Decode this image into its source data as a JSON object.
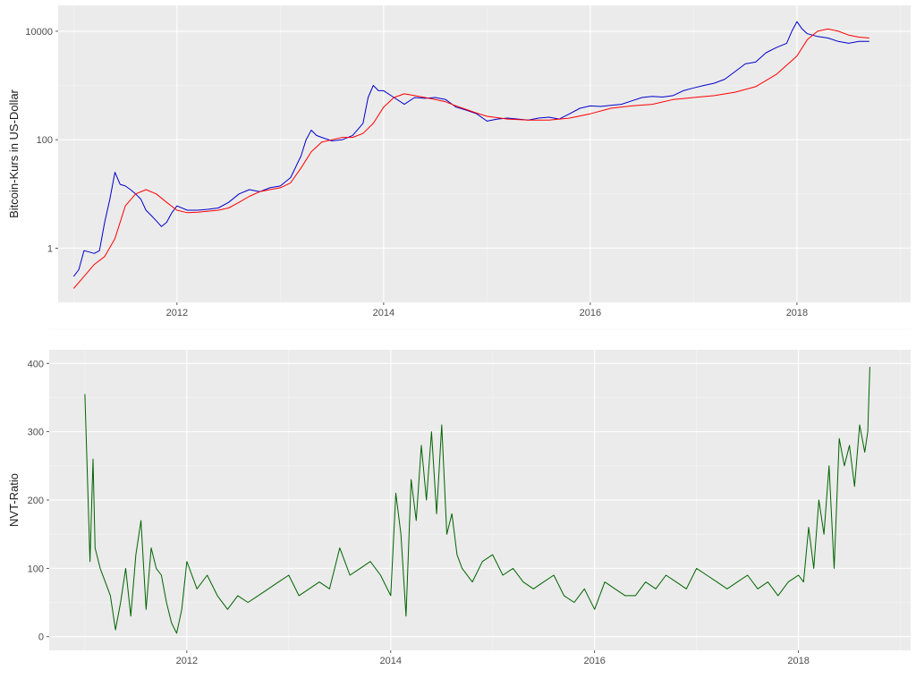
{
  "chart_data": [
    {
      "type": "line",
      "ylabel": "Bitcoin-Kurs in US-Dollar",
      "xlabel": "",
      "title": "",
      "y_scale": "log10",
      "xlim": [
        2010.85,
        2019.1
      ],
      "ylim": [
        0.1,
        30000
      ],
      "x_ticks": [
        2012,
        2014,
        2016,
        2018
      ],
      "x_tick_labels": [
        "2012",
        "2014",
        "2016",
        "2018"
      ],
      "y_ticks": [
        1,
        100,
        10000
      ],
      "y_tick_labels": [
        "1",
        "100",
        "10000"
      ],
      "grid": true,
      "series": [
        {
          "color": "#0000cd",
          "x": [
            2011.0,
            2011.05,
            2011.1,
            2011.15,
            2011.2,
            2011.25,
            2011.3,
            2011.35,
            2011.4,
            2011.45,
            2011.5,
            2011.55,
            2011.6,
            2011.65,
            2011.7,
            2011.75,
            2011.8,
            2011.85,
            2011.9,
            2011.95,
            2012.0,
            2012.1,
            2012.2,
            2012.3,
            2012.4,
            2012.5,
            2012.6,
            2012.7,
            2012.8,
            2012.9,
            2013.0,
            2013.1,
            2013.2,
            2013.25,
            2013.3,
            2013.35,
            2013.4,
            2013.5,
            2013.6,
            2013.7,
            2013.8,
            2013.85,
            2013.9,
            2013.95,
            2014.0,
            2014.1,
            2014.2,
            2014.3,
            2014.4,
            2014.5,
            2014.6,
            2014.7,
            2014.8,
            2014.9,
            2015.0,
            2015.1,
            2015.2,
            2015.3,
            2015.4,
            2015.5,
            2015.6,
            2015.7,
            2015.8,
            2015.9,
            2016.0,
            2016.1,
            2016.2,
            2016.3,
            2016.4,
            2016.5,
            2016.6,
            2016.7,
            2016.8,
            2016.9,
            2017.0,
            2017.1,
            2017.2,
            2017.3,
            2017.4,
            2017.5,
            2017.6,
            2017.7,
            2017.8,
            2017.9,
            2017.95,
            2018.0,
            2018.05,
            2018.1,
            2018.2,
            2018.3,
            2018.4,
            2018.5,
            2018.6,
            2018.7
          ],
          "values": [
            0.3,
            0.4,
            0.9,
            0.85,
            0.8,
            0.9,
            3,
            8,
            25,
            15,
            14,
            12,
            10,
            8,
            5,
            4,
            3.2,
            2.5,
            3,
            4.5,
            6,
            5,
            5,
            5.2,
            5.5,
            7,
            10,
            12,
            11,
            13,
            14,
            20,
            50,
            100,
            150,
            120,
            110,
            95,
            100,
            120,
            200,
            600,
            1000,
            800,
            800,
            600,
            450,
            600,
            580,
            600,
            550,
            400,
            350,
            300,
            220,
            240,
            250,
            240,
            230,
            250,
            260,
            240,
            300,
            380,
            420,
            410,
            430,
            450,
            520,
            600,
            630,
            610,
            650,
            800,
            900,
            1000,
            1100,
            1300,
            1800,
            2500,
            2700,
            4000,
            5000,
            6000,
            10000,
            15000,
            11000,
            9000,
            8000,
            7500,
            6500,
            6000,
            6500,
            6500
          ]
        },
        {
          "color": "#ff0000",
          "x": [
            2011.0,
            2011.1,
            2011.2,
            2011.3,
            2011.4,
            2011.5,
            2011.6,
            2011.7,
            2011.8,
            2011.9,
            2012.0,
            2012.1,
            2012.2,
            2012.3,
            2012.4,
            2012.5,
            2012.6,
            2012.7,
            2012.8,
            2012.9,
            2013.0,
            2013.1,
            2013.2,
            2013.3,
            2013.4,
            2013.5,
            2013.6,
            2013.7,
            2013.8,
            2013.9,
            2014.0,
            2014.1,
            2014.2,
            2014.3,
            2014.4,
            2014.5,
            2014.6,
            2014.7,
            2014.8,
            2014.9,
            2015.0,
            2015.2,
            2015.4,
            2015.6,
            2015.8,
            2016.0,
            2016.2,
            2016.4,
            2016.6,
            2016.8,
            2017.0,
            2017.2,
            2017.4,
            2017.6,
            2017.8,
            2018.0,
            2018.1,
            2018.2,
            2018.3,
            2018.4,
            2018.5,
            2018.6,
            2018.7
          ],
          "values": [
            0.18,
            0.3,
            0.5,
            0.7,
            1.5,
            6,
            10,
            12,
            10,
            7,
            5,
            4.5,
            4.6,
            4.8,
            5,
            5.5,
            7,
            9,
            11,
            12,
            13,
            16,
            30,
            60,
            90,
            100,
            110,
            110,
            130,
            200,
            400,
            600,
            700,
            650,
            600,
            550,
            500,
            420,
            360,
            310,
            270,
            240,
            230,
            230,
            250,
            300,
            380,
            420,
            450,
            550,
            600,
            650,
            750,
            950,
            1600,
            3500,
            7000,
            10000,
            11000,
            10000,
            8500,
            7800,
            7500
          ]
        }
      ]
    },
    {
      "type": "line",
      "ylabel": "NVT-Ratio",
      "xlabel": "",
      "title": "",
      "xlim": [
        2010.65,
        2019.1
      ],
      "ylim": [
        -20,
        420
      ],
      "x_ticks": [
        2012,
        2014,
        2016,
        2018
      ],
      "x_tick_labels": [
        "2012",
        "2014",
        "2016",
        "2018"
      ],
      "y_ticks": [
        0,
        100,
        200,
        300,
        400
      ],
      "y_tick_labels": [
        "0",
        "100",
        "200",
        "300",
        "400"
      ],
      "grid": true,
      "series": [
        {
          "color": "#006400",
          "x": [
            2011.0,
            2011.05,
            2011.08,
            2011.1,
            2011.15,
            2011.2,
            2011.25,
            2011.3,
            2011.35,
            2011.4,
            2011.45,
            2011.5,
            2011.55,
            2011.6,
            2011.65,
            2011.7,
            2011.75,
            2011.8,
            2011.85,
            2011.9,
            2011.95,
            2012.0,
            2012.1,
            2012.2,
            2012.3,
            2012.4,
            2012.5,
            2012.6,
            2012.7,
            2012.8,
            2012.9,
            2013.0,
            2013.1,
            2013.2,
            2013.3,
            2013.4,
            2013.5,
            2013.6,
            2013.7,
            2013.8,
            2013.9,
            2014.0,
            2014.05,
            2014.1,
            2014.15,
            2014.2,
            2014.25,
            2014.3,
            2014.35,
            2014.4,
            2014.45,
            2014.5,
            2014.55,
            2014.6,
            2014.65,
            2014.7,
            2014.8,
            2014.9,
            2015.0,
            2015.1,
            2015.2,
            2015.3,
            2015.4,
            2015.5,
            2015.6,
            2015.7,
            2015.8,
            2015.9,
            2016.0,
            2016.1,
            2016.2,
            2016.3,
            2016.4,
            2016.5,
            2016.6,
            2016.7,
            2016.8,
            2016.9,
            2017.0,
            2017.1,
            2017.2,
            2017.3,
            2017.4,
            2017.5,
            2017.6,
            2017.7,
            2017.8,
            2017.9,
            2018.0,
            2018.05,
            2018.1,
            2018.15,
            2018.2,
            2018.25,
            2018.3,
            2018.35,
            2018.4,
            2018.45,
            2018.5,
            2018.55,
            2018.6,
            2018.65,
            2018.68,
            2018.7
          ],
          "values": [
            355,
            110,
            260,
            130,
            100,
            80,
            60,
            10,
            50,
            100,
            30,
            120,
            170,
            40,
            130,
            100,
            90,
            50,
            20,
            5,
            40,
            110,
            70,
            90,
            60,
            40,
            60,
            50,
            60,
            70,
            80,
            90,
            60,
            70,
            80,
            70,
            130,
            90,
            100,
            110,
            90,
            60,
            210,
            150,
            30,
            230,
            170,
            280,
            200,
            300,
            180,
            310,
            150,
            180,
            120,
            100,
            80,
            110,
            120,
            90,
            100,
            80,
            70,
            80,
            90,
            60,
            50,
            70,
            40,
            80,
            70,
            60,
            60,
            80,
            70,
            90,
            80,
            70,
            100,
            90,
            80,
            70,
            80,
            90,
            70,
            80,
            60,
            80,
            90,
            80,
            160,
            100,
            200,
            150,
            250,
            100,
            290,
            250,
            280,
            220,
            310,
            270,
            300,
            395
          ]
        }
      ]
    }
  ]
}
